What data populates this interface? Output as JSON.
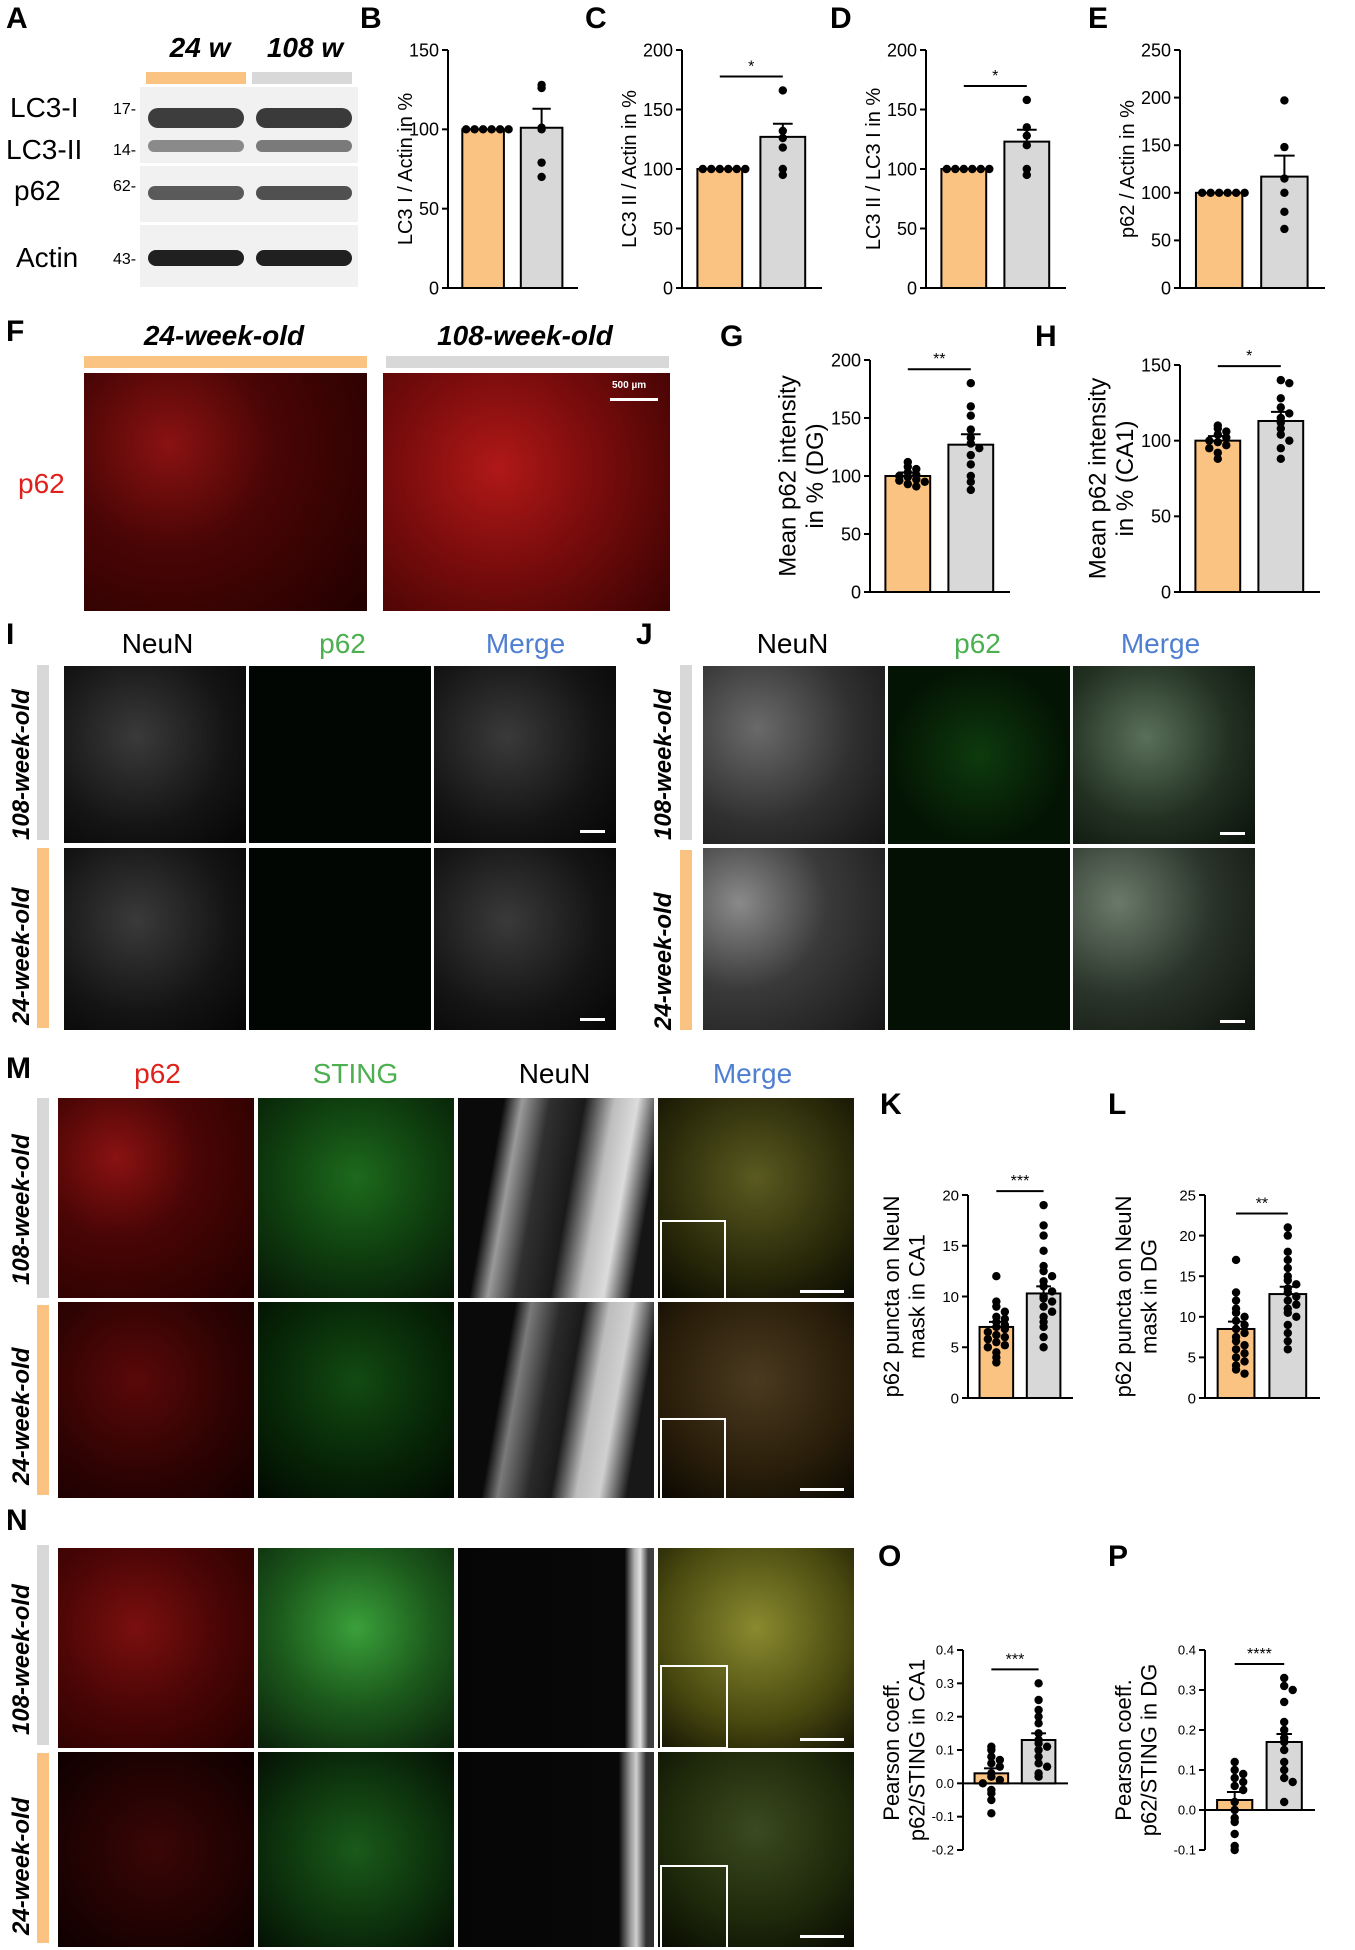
{
  "colors": {
    "young": "#FBC381",
    "old": "#D8D8D8",
    "red_label": "#E0201B",
    "green_label": "#4CAF50",
    "blue_label": "#4F7FD0"
  },
  "panel_letters": [
    "A",
    "B",
    "C",
    "D",
    "E",
    "F",
    "G",
    "H",
    "I",
    "J",
    "M",
    "K",
    "L",
    "N",
    "O",
    "P"
  ],
  "blot": {
    "group_young": "24 w",
    "group_old": "108 w",
    "labels": [
      "LC3-I",
      "LC3-II",
      "p62",
      "Actin"
    ],
    "markers": [
      "17-",
      "14-",
      "62-",
      "43-"
    ]
  },
  "panelF": {
    "young_title": "24-week-old",
    "old_title": "108-week-old",
    "stain": "p62",
    "scalebar": "500 µm"
  },
  "panelIJ": {
    "col_titles": [
      "NeuN",
      "p62",
      "Merge"
    ],
    "rows": [
      "108-week-old",
      "24-week-old"
    ]
  },
  "panelMN": {
    "col_titles": [
      "p62",
      "STING",
      "NeuN",
      "Merge"
    ],
    "rows": [
      "108-week-old",
      "24-week-old"
    ]
  },
  "chart_data": [
    {
      "panel": "B",
      "type": "bar",
      "ylabel": "LC3 I / Actin in %",
      "ylim": [
        0,
        150
      ],
      "yticks": [
        0,
        50,
        100,
        150
      ],
      "means": [
        100,
        101
      ],
      "sem": [
        0,
        12
      ],
      "points": [
        [
          100,
          100,
          100,
          100,
          100,
          100
        ],
        [
          128,
          126,
          100,
          101,
          79,
          70
        ]
      ],
      "significance": ""
    },
    {
      "panel": "C",
      "type": "bar",
      "ylabel": "LC3 II / Actin in %",
      "ylim": [
        0,
        200
      ],
      "yticks": [
        0,
        50,
        100,
        150,
        200
      ],
      "means": [
        100,
        127
      ],
      "sem": [
        0,
        11
      ],
      "points": [
        [
          100,
          100,
          100,
          100,
          100,
          100
        ],
        [
          166,
          132,
          126,
          118,
          100,
          95
        ]
      ],
      "significance": "*"
    },
    {
      "panel": "D",
      "type": "bar",
      "ylabel": "LC3 II / LC3 I in %",
      "ylim": [
        0,
        200
      ],
      "yticks": [
        0,
        50,
        100,
        150,
        200
      ],
      "means": [
        100,
        123
      ],
      "sem": [
        0,
        10
      ],
      "points": [
        [
          100,
          100,
          100,
          100,
          100,
          100
        ],
        [
          158,
          135,
          128,
          120,
          100,
          95
        ]
      ],
      "significance": "*"
    },
    {
      "panel": "E",
      "type": "bar",
      "ylabel": "p62 / Actin in %",
      "ylim": [
        0,
        250
      ],
      "yticks": [
        0,
        50,
        100,
        150,
        200,
        250
      ],
      "means": [
        100,
        117
      ],
      "sem": [
        0,
        22
      ],
      "points": [
        [
          100,
          100,
          100,
          100,
          100,
          100
        ],
        [
          197,
          148,
          115,
          100,
          80,
          62
        ]
      ],
      "significance": ""
    },
    {
      "panel": "G",
      "type": "bar",
      "ylabel": "Mean p62 intensity in % (DG)",
      "ylim": [
        0,
        200
      ],
      "yticks": [
        0,
        50,
        100,
        150,
        200
      ],
      "means": [
        100,
        127
      ],
      "sem": [
        3,
        9
      ],
      "points": [
        [
          112,
          108,
          106,
          103,
          101,
          100,
          99,
          97,
          96,
          95,
          93,
          91
        ],
        [
          180,
          160,
          152,
          140,
          133,
          128,
          124,
          118,
          110,
          100,
          95,
          88
        ]
      ],
      "significance": "**"
    },
    {
      "panel": "H",
      "type": "bar",
      "ylabel": "Mean p62 intensity in % (CA1)",
      "ylim": [
        0,
        150
      ],
      "yticks": [
        0,
        50,
        100,
        150
      ],
      "means": [
        100,
        113
      ],
      "sem": [
        3,
        6
      ],
      "points": [
        [
          110,
          108,
          106,
          104,
          102,
          100,
          99,
          97,
          95,
          92,
          88
        ],
        [
          140,
          138,
          128,
          122,
          118,
          115,
          112,
          108,
          104,
          100,
          95,
          88
        ]
      ],
      "significance": "*"
    },
    {
      "panel": "K",
      "type": "bar",
      "ylabel": "p62 puncta on NeuN mask in CA1",
      "ylim": [
        0,
        20
      ],
      "yticks": [
        0,
        5,
        10,
        15,
        20
      ],
      "means": [
        7.0,
        10.3
      ],
      "sem": [
        0.5,
        0.7
      ],
      "points": [
        [
          12,
          9.5,
          9,
          8.5,
          8,
          7.8,
          7.5,
          7.2,
          7,
          6.8,
          6.5,
          6.2,
          6,
          5.8,
          5.5,
          5.2,
          5,
          4.5,
          4,
          3.5
        ],
        [
          19,
          17,
          16,
          14.5,
          13,
          12.5,
          12,
          11.5,
          11,
          10.5,
          10,
          9.8,
          9.5,
          9,
          8.5,
          8,
          7.5,
          7,
          6,
          5
        ]
      ],
      "significance": "***"
    },
    {
      "panel": "L",
      "type": "bar",
      "ylabel": "p62 puncta on NeuN mask in DG",
      "ylim": [
        0,
        25
      ],
      "yticks": [
        0,
        5,
        10,
        15,
        20,
        25
      ],
      "means": [
        8.5,
        12.8
      ],
      "sem": [
        0.9,
        0.9
      ],
      "points": [
        [
          17,
          13,
          12,
          11,
          10.5,
          10,
          9.5,
          9,
          8.5,
          8,
          7.5,
          7,
          6.5,
          6,
          5.5,
          5,
          4.5,
          4,
          3.5,
          3
        ],
        [
          21,
          20,
          18,
          17,
          16,
          15,
          14.5,
          14,
          13.5,
          13,
          12.5,
          12,
          11.5,
          11,
          10.5,
          10,
          9,
          8,
          7,
          6
        ]
      ],
      "significance": "**"
    },
    {
      "panel": "O",
      "type": "bar",
      "ylabel": "Pearson coeff. p62/STING in CA1",
      "ylim": [
        -0.2,
        0.4
      ],
      "yticks": [
        -0.2,
        -0.1,
        0.0,
        0.1,
        0.2,
        0.3,
        0.4
      ],
      "means": [
        0.03,
        0.13
      ],
      "sem": [
        0.015,
        0.02
      ],
      "points": [
        [
          0.11,
          0.1,
          0.08,
          0.07,
          0.06,
          0.05,
          0.03,
          0.02,
          0.01,
          0.0,
          -0.02,
          -0.03,
          -0.05,
          -0.09
        ],
        [
          0.3,
          0.25,
          0.22,
          0.2,
          0.18,
          0.15,
          0.13,
          0.12,
          0.11,
          0.1,
          0.08,
          0.06,
          0.05,
          0.03,
          0.02
        ]
      ],
      "significance": "***"
    },
    {
      "panel": "P",
      "type": "bar",
      "ylabel": "Pearson coeff. p62/STING in DG",
      "ylim": [
        -0.1,
        0.4
      ],
      "yticks": [
        -0.1,
        0.0,
        0.1,
        0.2,
        0.3,
        0.4
      ],
      "means": [
        0.025,
        0.17
      ],
      "sem": [
        0.02,
        0.02
      ],
      "points": [
        [
          0.12,
          0.1,
          0.09,
          0.08,
          0.07,
          0.06,
          0.05,
          0.02,
          0.0,
          -0.02,
          -0.03,
          -0.06,
          -0.09,
          -0.1
        ],
        [
          0.33,
          0.31,
          0.3,
          0.27,
          0.22,
          0.2,
          0.18,
          0.17,
          0.15,
          0.12,
          0.1,
          0.08,
          0.07,
          0.02
        ]
      ],
      "significance": "****"
    }
  ]
}
